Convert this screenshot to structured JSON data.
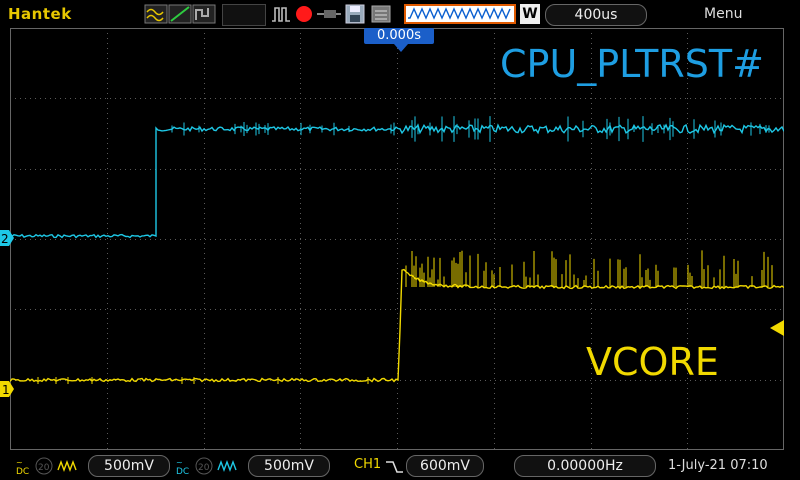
{
  "header": {
    "brand": "Hantek",
    "timebase_mode": "W",
    "timebase": "400us",
    "menu": "Menu"
  },
  "screen": {
    "trigger_position": "0.000s",
    "ch2_label": "CPU_PLTRST#",
    "ch1_label": "VCORE",
    "ch1_marker": "1",
    "ch2_marker": "2"
  },
  "footer": {
    "ch1_coupling": "DC",
    "ch1_bw": "20",
    "ch1_scale": "500mV",
    "ch2_coupling": "DC",
    "ch2_bw": "20",
    "ch2_scale": "500mV",
    "trigger_source": "CH1",
    "trigger_level": "600mV",
    "frequency": "0.00000Hz",
    "datetime": "1-July-21 07:10"
  },
  "colors": {
    "ch1": "#f1d900",
    "ch2": "#1ec8e6",
    "grid": "#5a5a5a",
    "accent": "#1b5fc9"
  }
}
